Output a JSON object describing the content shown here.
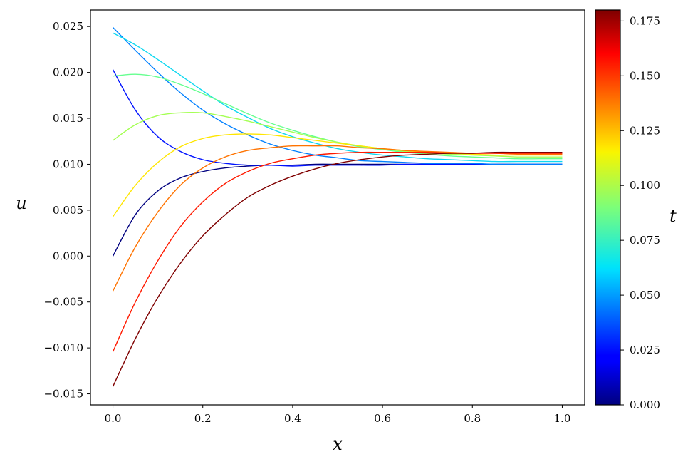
{
  "chart_data": {
    "type": "line",
    "xlabel": "x",
    "ylabel": "u",
    "xlim": [
      -0.05,
      1.05
    ],
    "ylim": [
      -0.0162,
      0.0268
    ],
    "x_ticks": [
      0.0,
      0.2,
      0.4,
      0.6,
      0.8,
      1.0
    ],
    "x_tick_labels": [
      "0.0",
      "0.2",
      "0.4",
      "0.6",
      "0.8",
      "1.0"
    ],
    "y_ticks": [
      -0.015,
      -0.01,
      -0.005,
      0.0,
      0.005,
      0.01,
      0.015,
      0.02,
      0.025
    ],
    "y_tick_labels": [
      "−0.015",
      "−0.010",
      "−0.005",
      "0.000",
      "0.005",
      "0.010",
      "0.015",
      "0.020",
      "0.025"
    ],
    "grid": false,
    "colormap": "jet",
    "colorbar": {
      "label": "t",
      "range": [
        0.0,
        0.18
      ],
      "ticks": [
        0.0,
        0.025,
        0.05,
        0.075,
        0.1,
        0.125,
        0.15,
        0.175
      ],
      "tick_labels": [
        "0.000",
        "0.025",
        "0.050",
        "0.075",
        "0.100",
        "0.125",
        "0.150",
        "0.175"
      ]
    },
    "x": [
      0.0,
      0.05,
      0.1,
      0.15,
      0.2,
      0.25,
      0.3,
      0.35,
      0.4,
      0.45,
      0.5,
      0.55,
      0.6,
      0.65,
      0.7,
      0.75,
      0.8,
      0.85,
      0.9,
      0.95,
      1.0
    ],
    "series": [
      {
        "t": 0.0,
        "color": "#00007f",
        "values": [
          0.0,
          0.0045,
          0.0071,
          0.0085,
          0.0092,
          0.0096,
          0.0098,
          0.0099,
          0.0099,
          0.01,
          0.01,
          0.01,
          0.01,
          0.01,
          0.01,
          0.01,
          0.01,
          0.01,
          0.01,
          0.01,
          0.01
        ]
      },
      {
        "t": 0.02,
        "color": "#0012ff",
        "values": [
          0.0203,
          0.0159,
          0.013,
          0.0114,
          0.0105,
          0.0101,
          0.0099,
          0.0099,
          0.0098,
          0.0099,
          0.0099,
          0.0099,
          0.0099,
          0.01,
          0.01,
          0.01,
          0.01,
          0.01,
          0.01,
          0.01,
          0.01
        ]
      },
      {
        "t": 0.04,
        "color": "#0080ff",
        "values": [
          0.0249,
          0.0224,
          0.02,
          0.0178,
          0.0159,
          0.0144,
          0.0132,
          0.0122,
          0.0115,
          0.011,
          0.0107,
          0.0104,
          0.0103,
          0.0102,
          0.0101,
          0.0101,
          0.0101,
          0.01,
          0.01,
          0.01,
          0.01
        ]
      },
      {
        "t": 0.06,
        "color": "#0dd8f0",
        "values": [
          0.0243,
          0.023,
          0.0214,
          0.0197,
          0.018,
          0.0164,
          0.0151,
          0.0139,
          0.013,
          0.0123,
          0.0117,
          0.0113,
          0.011,
          0.0108,
          0.0106,
          0.0105,
          0.0104,
          0.0103,
          0.0103,
          0.0103,
          0.0103
        ]
      },
      {
        "t": 0.08,
        "color": "#66ff90",
        "values": [
          0.0196,
          0.0198,
          0.0195,
          0.0187,
          0.0177,
          0.0166,
          0.0155,
          0.0145,
          0.0137,
          0.013,
          0.0124,
          0.0119,
          0.0116,
          0.0113,
          0.0111,
          0.0109,
          0.0108,
          0.0107,
          0.0106,
          0.0106,
          0.0106
        ]
      },
      {
        "t": 0.1,
        "color": "#a4ff53",
        "values": [
          0.0126,
          0.0143,
          0.0153,
          0.0156,
          0.0156,
          0.0152,
          0.0147,
          0.0141,
          0.0135,
          0.0129,
          0.0124,
          0.012,
          0.0117,
          0.0114,
          0.0112,
          0.0111,
          0.011,
          0.0109,
          0.0108,
          0.0108,
          0.0108
        ]
      },
      {
        "t": 0.12,
        "color": "#ffe600",
        "values": [
          0.0043,
          0.0077,
          0.0102,
          0.0119,
          0.0128,
          0.0132,
          0.0133,
          0.0132,
          0.0129,
          0.0126,
          0.0123,
          0.012,
          0.0117,
          0.0115,
          0.0113,
          0.0112,
          0.0111,
          0.011,
          0.011,
          0.011,
          0.011
        ]
      },
      {
        "t": 0.14,
        "color": "#ff7300",
        "values": [
          -0.0038,
          0.001,
          0.0048,
          0.0077,
          0.0096,
          0.0108,
          0.0115,
          0.0118,
          0.012,
          0.012,
          0.012,
          0.0118,
          0.0117,
          0.0115,
          0.0114,
          0.0113,
          0.0112,
          0.0112,
          0.0111,
          0.0111,
          0.0111
        ]
      },
      {
        "t": 0.16,
        "color": "#ff1a00",
        "values": [
          -0.0104,
          -0.005,
          -0.0005,
          0.0032,
          0.0059,
          0.0079,
          0.0092,
          0.0101,
          0.0106,
          0.011,
          0.0112,
          0.0113,
          0.0113,
          0.0113,
          0.0113,
          0.0112,
          0.0112,
          0.0112,
          0.0112,
          0.0112,
          0.0112
        ]
      },
      {
        "t": 0.18,
        "color": "#7f0000",
        "values": [
          -0.0142,
          -0.009,
          -0.0045,
          -0.0008,
          0.0022,
          0.0045,
          0.0064,
          0.0077,
          0.0087,
          0.0095,
          0.0101,
          0.0105,
          0.0108,
          0.011,
          0.0111,
          0.0112,
          0.0112,
          0.0113,
          0.0113,
          0.0113,
          0.0113
        ]
      }
    ]
  }
}
